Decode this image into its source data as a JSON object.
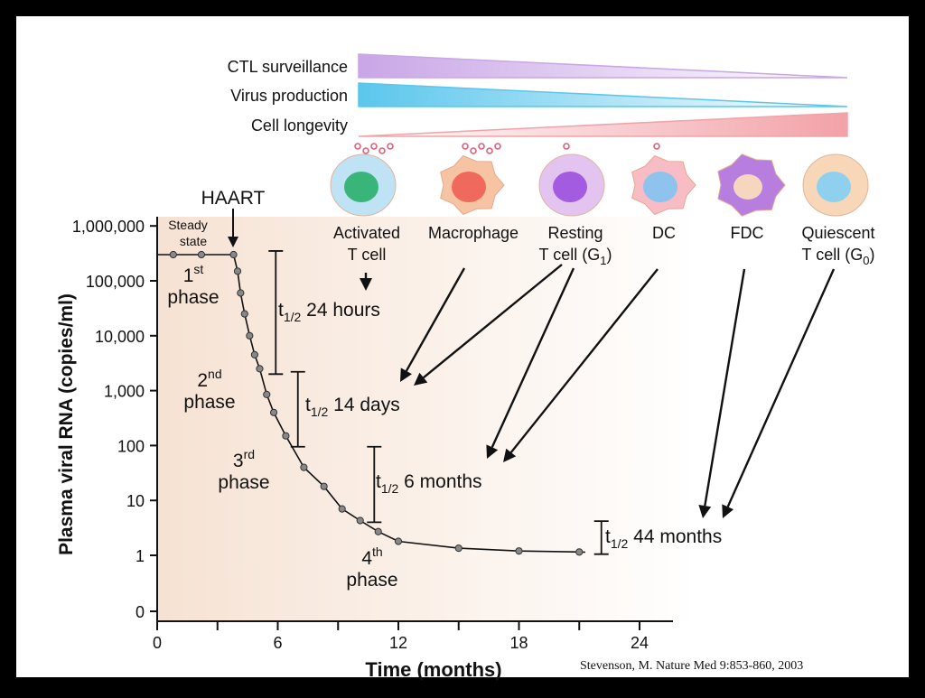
{
  "gradients": [
    {
      "label": "CTL surveillance",
      "color": "#c9a6e6",
      "direction": "decreasing"
    },
    {
      "label": "Virus production",
      "color": "#5bc6ec",
      "direction": "decreasing"
    },
    {
      "label": "Cell longevity",
      "color": "#f2a2a8",
      "direction": "increasing"
    }
  ],
  "cells": [
    {
      "line1": "Activated",
      "line2": "T cell",
      "body": "#bfe3f5",
      "nucleus": "#3ab57a",
      "dots": 5
    },
    {
      "line1": "",
      "line2": "Macrophage",
      "body": "#f6c4a2",
      "nucleus": "#ef6a5c",
      "dots": 5
    },
    {
      "line1": "Resting",
      "line2": "T cell (G",
      "sub": "1",
      "close": ")",
      "body": "#e3c3ef",
      "nucleus": "#a35ce0",
      "dots": 1
    },
    {
      "line1": "",
      "line2": "DC",
      "body": "#f7bcc4",
      "nucleus": "#8ec3ee",
      "dots": 1
    },
    {
      "line1": "",
      "line2": "FDC",
      "body": "#b77ee0",
      "nucleus": "#f7d6bf",
      "dots": 0
    },
    {
      "line1": "Quiescent",
      "line2": "T cell  (G",
      "sub": "0",
      "close": ")",
      "body": "#f8d7b8",
      "nucleus": "#8fd0ef",
      "dots": 0
    }
  ],
  "haart_label": "HAART",
  "citation": "Stevenson, M.  Nature Med 9:853-860, 2003",
  "chart_data": {
    "type": "line",
    "xlabel": "Time (months)",
    "ylabel": "Plasma viral RNA (copies/ml)",
    "xlim": [
      0,
      26
    ],
    "x_ticks": [
      0,
      6,
      12,
      18,
      24
    ],
    "x_tick_labels": [
      "0",
      "6",
      "12",
      "18",
      "24"
    ],
    "y_scale": "log",
    "y_ticks": [
      "1,000,000",
      "100,000",
      "10,000",
      "1,000",
      "100",
      "10",
      "1",
      "0"
    ],
    "haart_start": 4,
    "series": [
      {
        "points": [
          {
            "x": 0.8,
            "y": 300000
          },
          {
            "x": 2.2,
            "y": 300000
          },
          {
            "x": 3.8,
            "y": 300000
          },
          {
            "x": 4.0,
            "y": 150000
          },
          {
            "x": 4.15,
            "y": 60000
          },
          {
            "x": 4.35,
            "y": 25000
          },
          {
            "x": 4.6,
            "y": 10000
          },
          {
            "x": 4.85,
            "y": 4500
          },
          {
            "x": 5.1,
            "y": 2500
          },
          {
            "x": 5.45,
            "y": 850
          },
          {
            "x": 5.8,
            "y": 400
          },
          {
            "x": 6.4,
            "y": 150
          },
          {
            "x": 7.3,
            "y": 40
          },
          {
            "x": 8.3,
            "y": 18
          },
          {
            "x": 9.2,
            "y": 7
          },
          {
            "x": 10.1,
            "y": 4.3
          },
          {
            "x": 11.0,
            "y": 2.7
          },
          {
            "x": 12.0,
            "y": 1.8
          },
          {
            "x": 15.0,
            "y": 1.35
          },
          {
            "x": 18.0,
            "y": 1.2
          },
          {
            "x": 21.0,
            "y": 1.15
          }
        ]
      }
    ],
    "phases": [
      {
        "label": "Steady",
        "label2": "state",
        "x": 1.6,
        "y": 1000000
      },
      {
        "label": "1",
        "sup": "st",
        "label2": "phase",
        "x": 1.9,
        "y": 110000
      },
      {
        "label": "2",
        "sup": "nd",
        "label2": "phase",
        "x": 2.6,
        "y": 900
      },
      {
        "label": "3",
        "sup": "rd",
        "label2": "phase",
        "x": 4.3,
        "y": 30
      },
      {
        "label": "4",
        "sup": "th",
        "label2": "phase",
        "x": 10.8,
        "y": 0.5
      }
    ],
    "half_lives": [
      {
        "value": "24 hours",
        "x": 5.9,
        "y_top": 350000,
        "y_bottom": 2000
      },
      {
        "value": "14 days",
        "x": 7.0,
        "y_top": 2200,
        "y_bottom": 95
      },
      {
        "value": "6 months",
        "x": 10.8,
        "y_top": 95,
        "y_bottom": 4
      },
      {
        "value": "44 months",
        "x": 22.1,
        "y_top": 4.2,
        "y_bottom": 1.05
      }
    ],
    "half_life_prefix": "t",
    "half_life_sub": "1/2"
  }
}
